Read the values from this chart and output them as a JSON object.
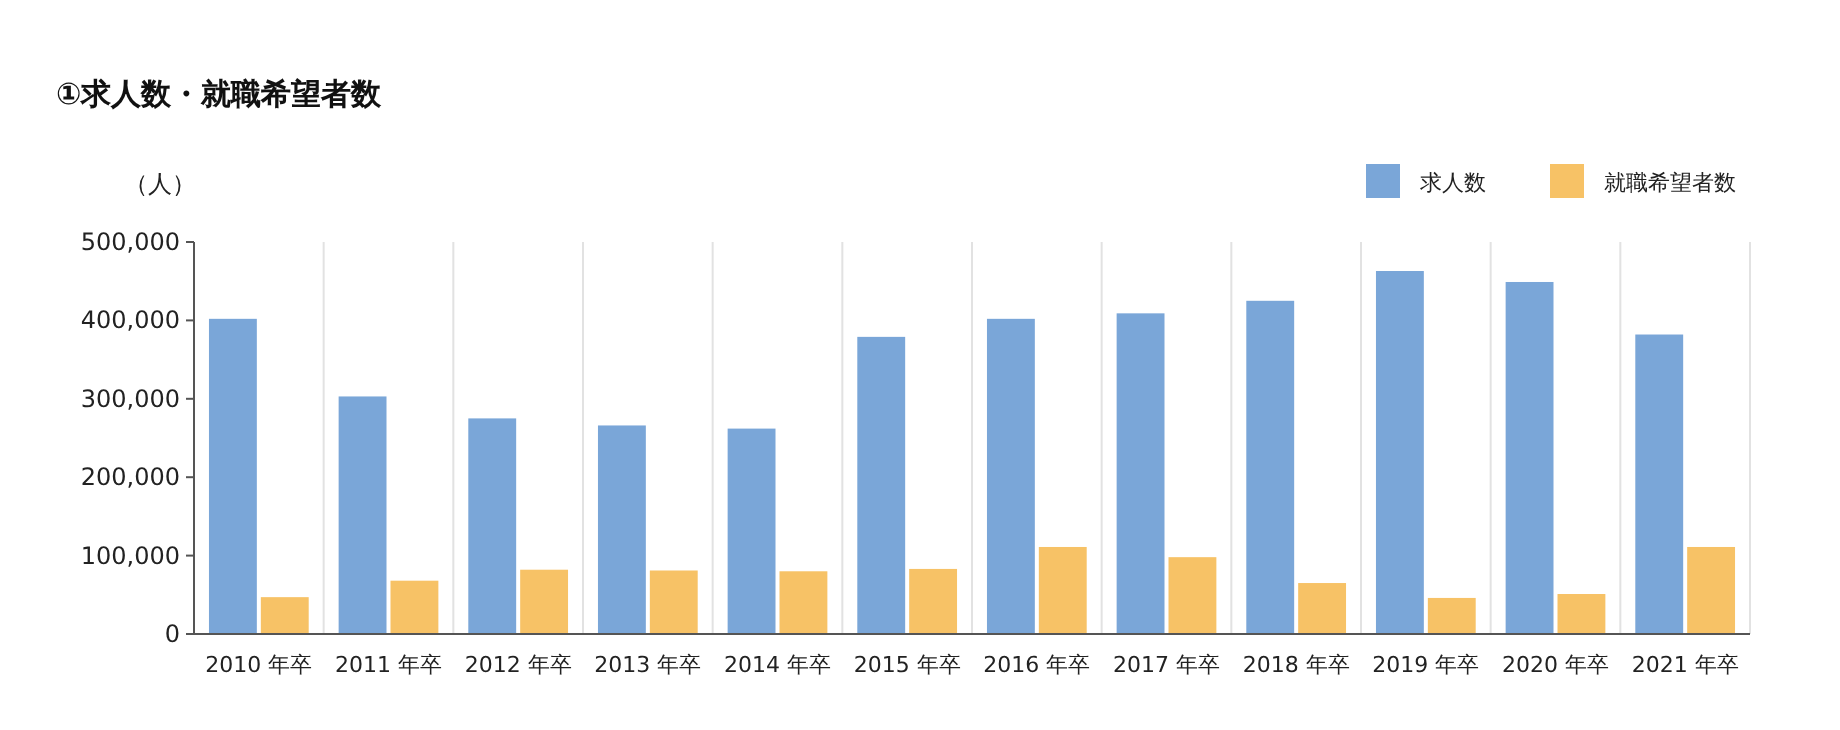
{
  "chart_data": {
    "type": "bar",
    "title": "①求人数・就職希望者数",
    "ylabel": "（人）",
    "categories": [
      "2010 年卒",
      "2011 年卒",
      "2012 年卒",
      "2013 年卒",
      "2014 年卒",
      "2015 年卒",
      "2016 年卒",
      "2017 年卒",
      "2018 年卒",
      "2019 年卒",
      "2020 年卒",
      "2021 年卒"
    ],
    "series": [
      {
        "name": "求人数",
        "color": "#7aa6d8",
        "values": [
          402000,
          303000,
          275000,
          266000,
          262000,
          379000,
          402000,
          409000,
          425000,
          463000,
          449000,
          382000
        ]
      },
      {
        "name": "就職希望者数",
        "color": "#f7c266",
        "values": [
          47000,
          68000,
          82000,
          81000,
          80000,
          83000,
          111000,
          98000,
          65000,
          46000,
          51000,
          111000
        ]
      }
    ],
    "ylim": [
      0,
      500000
    ],
    "yticks": [
      {
        "value": 0,
        "label": "0"
      },
      {
        "value": 100000,
        "label": "100,000"
      },
      {
        "value": 200000,
        "label": "200,000"
      },
      {
        "value": 300000,
        "label": "300,000"
      },
      {
        "value": 400000,
        "label": "400,000"
      },
      {
        "value": 500000,
        "label": "500,000"
      }
    ],
    "grid": "x",
    "legend": "top right"
  }
}
